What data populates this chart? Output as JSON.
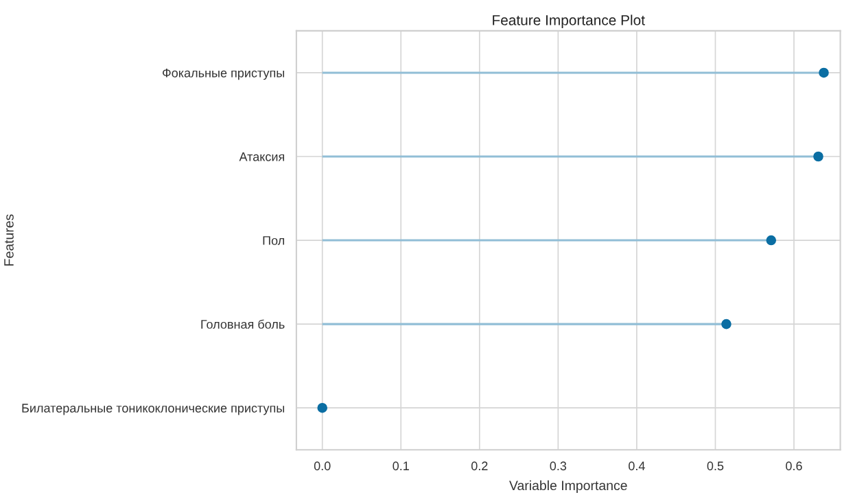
{
  "chart_data": {
    "type": "lollipop",
    "orientation": "horizontal",
    "title": "Feature Importance Plot",
    "xlabel": "Variable Importance",
    "ylabel": "Features",
    "categories": [
      "Фокальные приступы",
      "Атаксия",
      "Пол",
      "Головная боль",
      "Билатеральные тоникоклонические приступы"
    ],
    "series": [
      {
        "color": "#0b6ea3",
        "values": [
          0.638,
          0.631,
          0.571,
          0.514,
          0.0
        ]
      }
    ],
    "xlim": [
      -0.033,
      0.659
    ],
    "xticks": [
      {
        "value": 0,
        "label": "0.0"
      },
      0.1,
      0.2,
      0.3,
      0.4,
      0.5,
      0.6
    ],
    "grid": true,
    "marker": "circle"
  }
}
